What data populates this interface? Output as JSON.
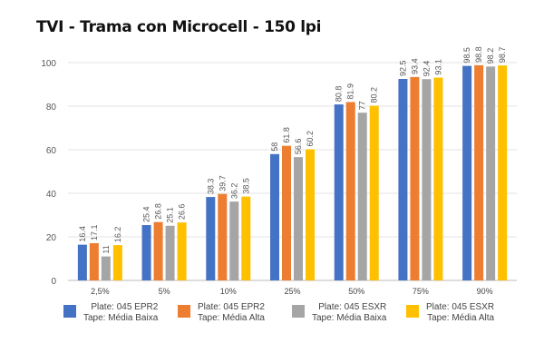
{
  "chart_data": {
    "type": "bar",
    "title": "TVI - Trama con Microcell - 150 lpi",
    "categories": [
      "2,5%",
      "5%",
      "10%",
      "25%",
      "50%",
      "75%",
      "90%"
    ],
    "ylim": [
      0,
      100
    ],
    "yticks": [
      0,
      20,
      40,
      60,
      80,
      100
    ],
    "grid": true,
    "legend_position": "bottom",
    "series": [
      {
        "name": [
          "Plate: 045 EPR2",
          "Tape: Média Baixa"
        ],
        "color": "#4472C4",
        "values": [
          16.4,
          25.4,
          38.3,
          58,
          80.8,
          92.5,
          98.5
        ]
      },
      {
        "name": [
          "Plate: 045 EPR2",
          "Tape: Média Alta"
        ],
        "color": "#ED7D31",
        "values": [
          17.1,
          26.8,
          39.7,
          61.8,
          81.9,
          93.4,
          98.8
        ]
      },
      {
        "name": [
          "Plate: 045 ESXR",
          "Tape: Média Baixa"
        ],
        "color": "#A5A5A5",
        "values": [
          11,
          25.1,
          36.2,
          56.6,
          77,
          92.4,
          98.2
        ]
      },
      {
        "name": [
          "Plate: 045 ESXR",
          "Tape: Média Alta"
        ],
        "color": "#FFC000",
        "values": [
          16.2,
          26.6,
          38.5,
          60.2,
          80.2,
          93.1,
          98.7
        ]
      }
    ]
  }
}
